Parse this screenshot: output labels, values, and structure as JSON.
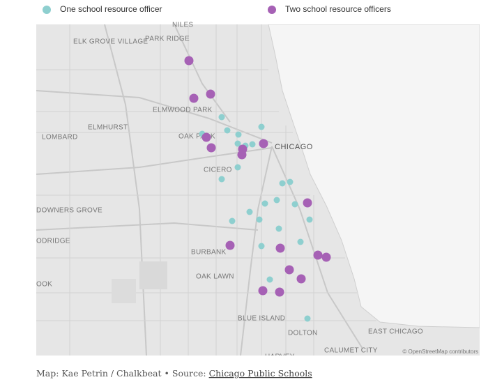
{
  "legend": [
    {
      "label": "One school resource officer",
      "color": "#8ecfcf"
    },
    {
      "label": "Two school resource officers",
      "color": "#a661b5"
    }
  ],
  "map": {
    "place_labels": [
      "NILES",
      "ELK GROVE VILLAGE",
      "PARK RIDGE",
      "ELMWOOD PARK",
      "ELMHURST",
      "LOMBARD",
      "OAK PARK",
      "CHICAGO",
      "CICERO",
      "DOWNERS GROVE",
      "ODRIDGE",
      "BURBANK",
      "OAK LAWN",
      "OOK",
      "BLUE ISLAND",
      "DOLTON",
      "EAST CHICAGO",
      "CALUMET CITY",
      "HARVEY"
    ],
    "attribution": "© OpenStreetMap contributors"
  },
  "caption": {
    "text": "Map: Kae Petrin / Chalkbeat • Source:",
    "source_link": "Chicago Public Schools"
  }
}
